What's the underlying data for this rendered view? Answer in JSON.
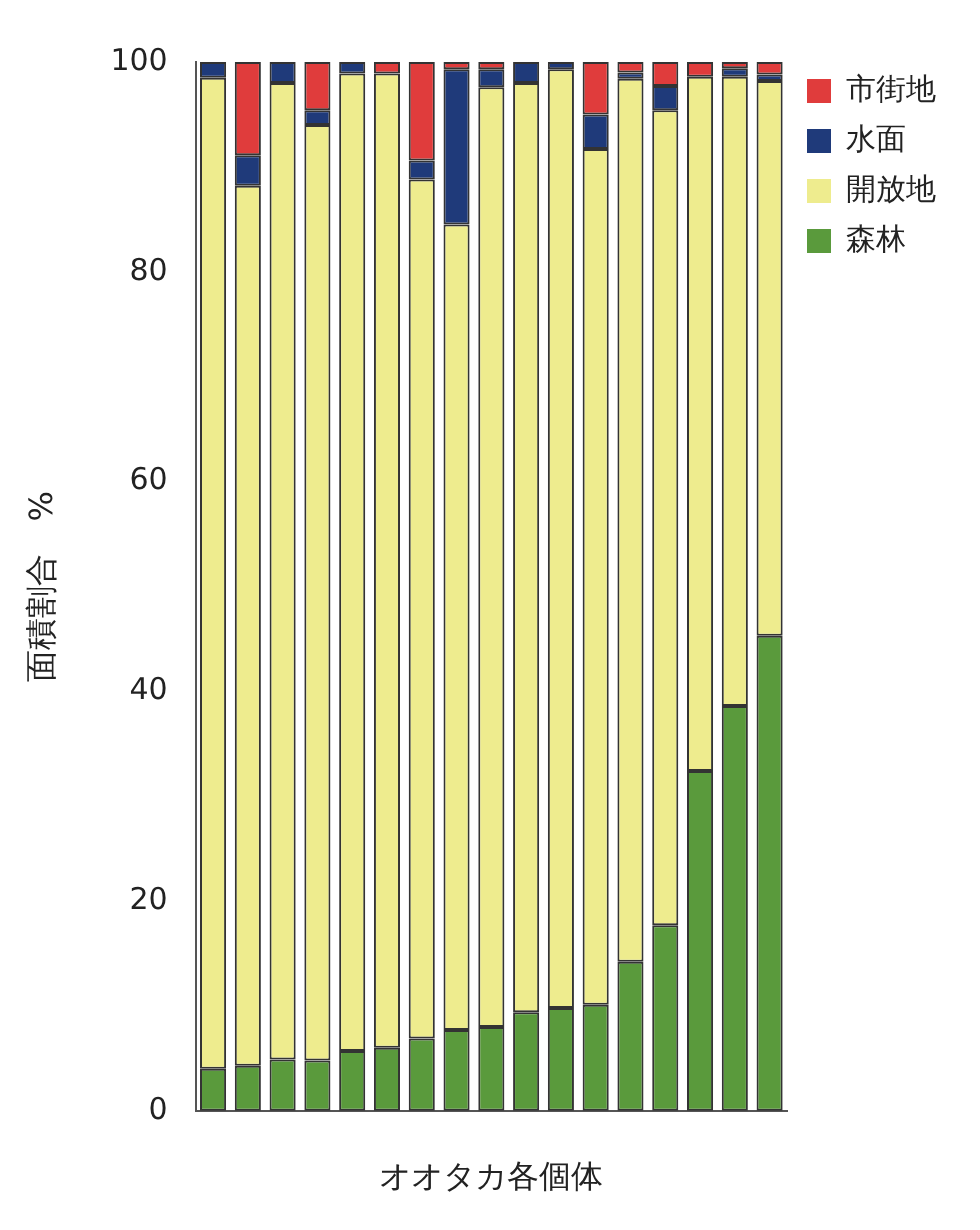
{
  "chart_data": {
    "type": "bar",
    "stacked": true,
    "xlabel": "オオタカ各個体",
    "ylabel": "面積割合　%",
    "categories": [
      null,
      null,
      null,
      null,
      null,
      null,
      null,
      null,
      null,
      null,
      null,
      null,
      null,
      null,
      null,
      null,
      null
    ],
    "ylim": [
      0,
      100
    ],
    "yticks": [
      0,
      20,
      40,
      60,
      80,
      100
    ],
    "grid": false,
    "legend": "top right",
    "series": [
      {
        "name": "森林",
        "color": "#5a9a3c",
        "values": [
          4,
          4.3,
          4.9,
          4.8,
          5.7,
          6,
          6.9,
          7.7,
          8,
          9.4,
          9.8,
          10.1,
          14.2,
          17.7,
          32.4,
          38.6,
          45.3
        ]
      },
      {
        "name": "開放地",
        "color": "#eeec8e",
        "values": [
          94.5,
          83.9,
          93.1,
          89.2,
          93.2,
          92.9,
          81.9,
          76.8,
          89.6,
          88.6,
          89.5,
          81.6,
          84.2,
          77.7,
          66.2,
          60,
          52.9
        ]
      },
      {
        "name": "水面",
        "color": "#1f3a7a",
        "values": [
          1.5,
          2.9,
          2,
          1.4,
          1.1,
          0,
          1.8,
          14.8,
          1.7,
          2,
          0.7,
          3.3,
          0.6,
          2.3,
          0,
          0.8,
          0.6
        ]
      },
      {
        "name": "市街地",
        "color": "#e03c3c",
        "values": [
          0,
          8.9,
          0,
          4.6,
          0,
          1.1,
          9.4,
          0.7,
          0.7,
          0,
          0,
          5,
          1,
          2.3,
          1.4,
          0.6,
          1.2
        ]
      }
    ]
  }
}
